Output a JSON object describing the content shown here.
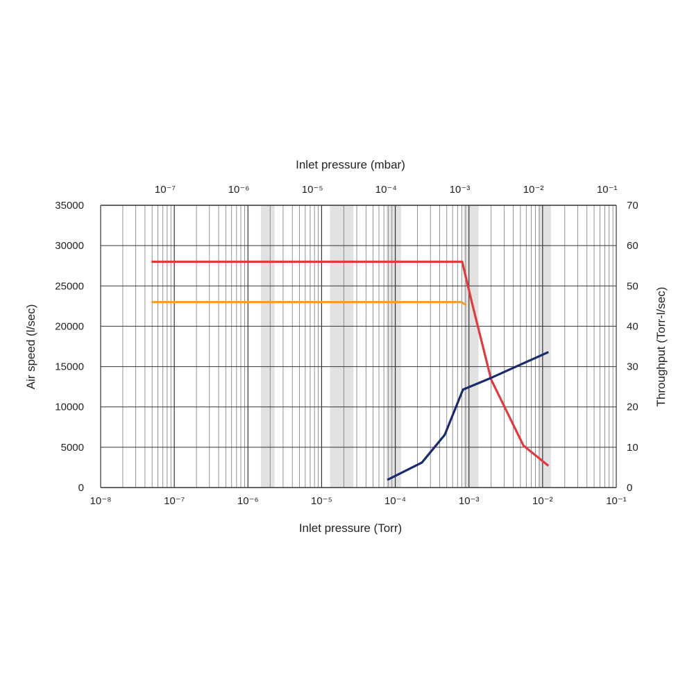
{
  "chart_data": {
    "type": "line",
    "title": "",
    "xlabel_bottom": "Inlet pressure (Torr)",
    "xlabel_top": "Inlet pressure (mbar)",
    "ylabel_left": "Air speed (l/sec)",
    "ylabel_right": "Throughput (Torr-l/sec)",
    "x_scale": "log",
    "xlim": [
      1e-08,
      0.1
    ],
    "ylim_left": [
      0,
      35000
    ],
    "ylim_right": [
      0,
      70
    ],
    "grid": true,
    "bottom_ticks": [
      "10⁻⁸",
      "10⁻⁷",
      "10⁻⁶",
      "10⁻⁵",
      "10⁻⁴",
      "10⁻³",
      "10⁻²",
      "10⁻¹"
    ],
    "top_ticks": [
      "10⁻⁷",
      "10⁻⁶",
      "10⁻⁵",
      "10⁻⁴",
      "10⁻³",
      "10⁻²",
      "10⁻¹"
    ],
    "left_ticks": [
      "0",
      "5000",
      "10000",
      "15000",
      "20000",
      "25000",
      "30000",
      "35000"
    ],
    "right_ticks": [
      "0",
      "10",
      "20",
      "30",
      "40",
      "50",
      "60",
      "70"
    ],
    "series": [
      {
        "color": "#e0393e",
        "axis": "left",
        "x": [
          4.9e-08,
          0.00081,
          0.0011,
          0.002,
          0.0055,
          0.012
        ],
        "y": [
          28000,
          28000,
          22900,
          13400,
          5200,
          2700
        ]
      },
      {
        "color": "#f0a030",
        "axis": "left",
        "x": [
          4.9e-08,
          0.00079,
          0.00092
        ],
        "y": [
          23000,
          23000,
          22600
        ]
      },
      {
        "color": "#1a2a6c",
        "axis": "right",
        "x": [
          7.8e-05,
          0.00023,
          0.00047,
          0.00083,
          0.002,
          0.012
        ],
        "y": [
          1.9,
          6.2,
          13.1,
          24.3,
          27.2,
          33.6
        ]
      }
    ],
    "shaded_bands_torr": [
      [
        1.5e-06,
        2.3e-06
      ],
      [
        1.3e-05,
        2.7e-05
      ],
      [
        7.6e-05,
        0.00012
      ],
      [
        0.00085,
        0.00135
      ],
      [
        0.0088,
        0.013
      ]
    ]
  }
}
